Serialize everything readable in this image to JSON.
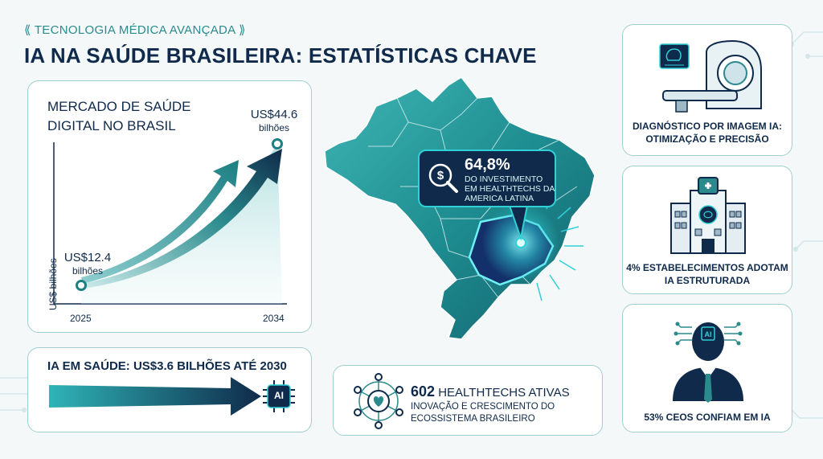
{
  "header": {
    "kicker": "⟪ TECNOLOGIA MÉDICA AVANÇADA ⟫",
    "title": "IA NA SAÚDE BRASILEIRA: ESTATÍSTICAS CHAVE"
  },
  "market": {
    "title": "MERCADO DE SAÚDE DIGITAL NO BRASIL",
    "start_value": "US$12.4",
    "start_unit": "bilhões",
    "end_value": "US$44.6",
    "end_unit": "bilhões",
    "ylabel": "US$ bilhões",
    "start_year": "2025",
    "end_year": "2034"
  },
  "ia": {
    "title": "IA EM SAÚDE: US$3.6 BILHÕES ATÉ 2030",
    "chip_label": "AI"
  },
  "map": {
    "callout_pct": "64,8%",
    "callout_text": "DO INVESTIMENTO EM HEALTHTECHS DA AMERICA LATINA"
  },
  "healthtechs": {
    "count": "602",
    "title_rest": " HEALTHTECHS ATIVAS",
    "subtitle": "INOVAÇÃO E CRESCIMENTO DO ECOSSISTEMA BRASILEIRO"
  },
  "side_cards": [
    {
      "icon": "mri-scanner-icon",
      "text": "DIAGNÓSTICO POR IMAGEM IA: OTIMIZAÇÃO E PRECISÃO"
    },
    {
      "icon": "hospital-icon",
      "text": "4% ESTABELECIMENTOS ADOTAM IA ESTRUTURADA"
    },
    {
      "icon": "ceo-ai-icon",
      "text": "53% CEOs CONFIAM EM IA"
    }
  ],
  "colors": {
    "navy": "#0f2a4a",
    "teal": "#2a8a8c",
    "aqua": "#2fd0d6",
    "border": "#9fcfd0"
  }
}
